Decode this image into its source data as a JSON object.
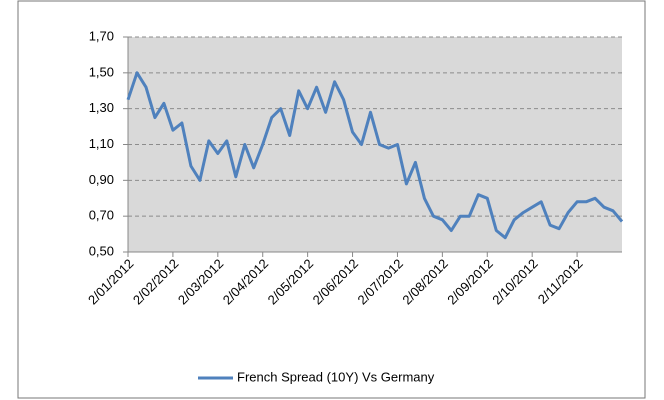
{
  "chart_data": {
    "type": "line",
    "categories": [
      "2/01/2012",
      null,
      null,
      null,
      null,
      "2/02/2012",
      null,
      null,
      null,
      null,
      "2/03/2012",
      null,
      null,
      null,
      null,
      "2/04/2012",
      null,
      null,
      null,
      null,
      "2/05/2012",
      null,
      null,
      null,
      null,
      "2/06/2012",
      null,
      null,
      null,
      null,
      "2/07/2012",
      null,
      null,
      null,
      null,
      "2/08/2012",
      null,
      null,
      null,
      null,
      "2/09/2012",
      null,
      null,
      null,
      null,
      "2/10/2012",
      null,
      null,
      null,
      null,
      "2/11/2012",
      null,
      null,
      null,
      null,
      null
    ],
    "series": [
      {
        "name": "French Spread (10Y) Vs Germany",
        "color": "#4f81bd",
        "values": [
          1.35,
          1.5,
          1.42,
          1.25,
          1.33,
          1.18,
          1.22,
          0.98,
          0.9,
          1.12,
          1.05,
          1.12,
          0.92,
          1.1,
          0.97,
          1.1,
          1.25,
          1.3,
          1.15,
          1.4,
          1.3,
          1.42,
          1.28,
          1.45,
          1.35,
          1.17,
          1.1,
          1.28,
          1.1,
          1.08,
          1.1,
          0.88,
          1.0,
          0.8,
          0.7,
          0.68,
          0.62,
          0.7,
          0.7,
          0.82,
          0.8,
          0.62,
          0.58,
          0.68,
          0.72,
          0.75,
          0.78,
          0.65,
          0.63,
          0.72,
          0.78,
          0.78,
          0.8,
          0.75,
          0.73,
          0.67
        ]
      }
    ],
    "ylim": [
      0.5,
      1.7
    ],
    "yticks": [
      {
        "value": 0.5,
        "label": "0,50"
      },
      {
        "value": 0.7,
        "label": "0,70"
      },
      {
        "value": 0.9,
        "label": "0,90"
      },
      {
        "value": 1.1,
        "label": "1,10"
      },
      {
        "value": 1.3,
        "label": "1,30"
      },
      {
        "value": 1.5,
        "label": "1,50"
      },
      {
        "value": 1.7,
        "label": "1,70"
      }
    ],
    "grid": true,
    "legend": "bottom"
  }
}
